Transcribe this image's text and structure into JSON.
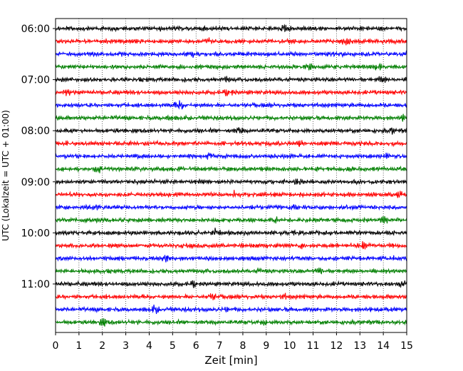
{
  "chart_data": {
    "type": "line",
    "subtype": "helicorder",
    "xlabel": "Zeit  [min]",
    "ylabel": "UTC (Lokalzeit = UTC + 01:00)",
    "xlim": [
      0,
      15
    ],
    "x_ticks": [
      0,
      1,
      2,
      3,
      4,
      5,
      6,
      7,
      8,
      9,
      10,
      11,
      12,
      13,
      14,
      15
    ],
    "grid": "vertical dotted",
    "minutes_per_line": 15,
    "trace_colors": [
      "#000000",
      "#ff0000",
      "#0000ff",
      "#007f00"
    ],
    "hour_labels": [
      "06:00",
      "07:00",
      "08:00",
      "09:00",
      "10:00",
      "11:00"
    ],
    "traces": [
      {
        "start": "06:00",
        "color": "#000000"
      },
      {
        "start": "06:15",
        "color": "#ff0000"
      },
      {
        "start": "06:30",
        "color": "#0000ff"
      },
      {
        "start": "06:45",
        "color": "#007f00"
      },
      {
        "start": "07:00",
        "color": "#000000"
      },
      {
        "start": "07:15",
        "color": "#ff0000"
      },
      {
        "start": "07:30",
        "color": "#0000ff"
      },
      {
        "start": "07:45",
        "color": "#007f00"
      },
      {
        "start": "08:00",
        "color": "#000000"
      },
      {
        "start": "08:15",
        "color": "#ff0000"
      },
      {
        "start": "08:30",
        "color": "#0000ff"
      },
      {
        "start": "08:45",
        "color": "#007f00"
      },
      {
        "start": "09:00",
        "color": "#000000"
      },
      {
        "start": "09:15",
        "color": "#ff0000"
      },
      {
        "start": "09:30",
        "color": "#0000ff"
      },
      {
        "start": "09:45",
        "color": "#007f00"
      },
      {
        "start": "10:00",
        "color": "#000000"
      },
      {
        "start": "10:15",
        "color": "#ff0000"
      },
      {
        "start": "10:30",
        "color": "#0000ff"
      },
      {
        "start": "10:45",
        "color": "#007f00"
      },
      {
        "start": "11:00",
        "color": "#000000"
      },
      {
        "start": "11:15",
        "color": "#ff0000"
      },
      {
        "start": "11:30",
        "color": "#0000ff"
      },
      {
        "start": "11:45",
        "color": "#007f00"
      }
    ]
  }
}
